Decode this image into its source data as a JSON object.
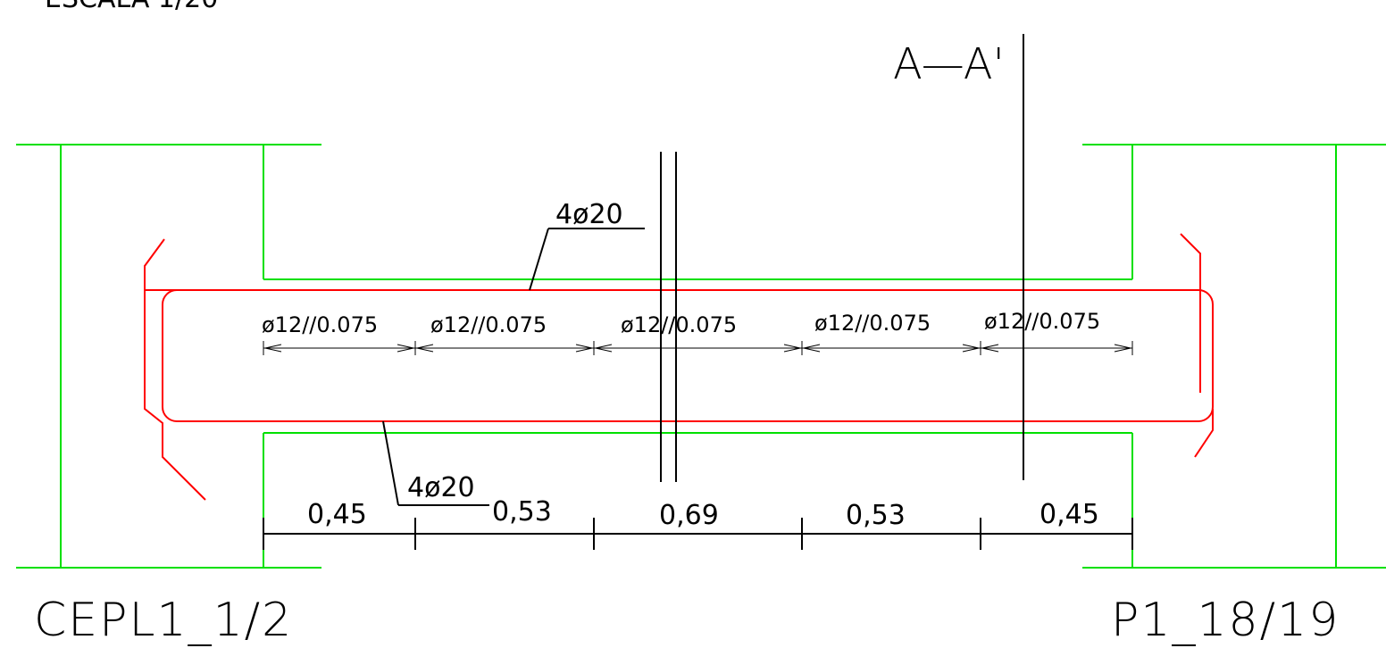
{
  "drawing": {
    "scale_label": "ESCALA 1/20",
    "section_label": "A—A'",
    "left_element": "CEPL1_1/2",
    "right_element": "P1_18/19",
    "top_rebar": "4ø20",
    "bottom_rebar": "4ø20",
    "stirrup_spacing": [
      "ø12//0.075",
      "ø12//0.075",
      "ø12//0.075",
      "ø12//0.075",
      "ø12//0.075"
    ],
    "dimensions": [
      "0,45",
      "0,53",
      "0,69",
      "0,53",
      "0,45"
    ]
  },
  "colors": {
    "concrete_outline": "#00e000",
    "rebar": "#ff0000",
    "annotation": "#000000",
    "background": "#ffffff"
  }
}
